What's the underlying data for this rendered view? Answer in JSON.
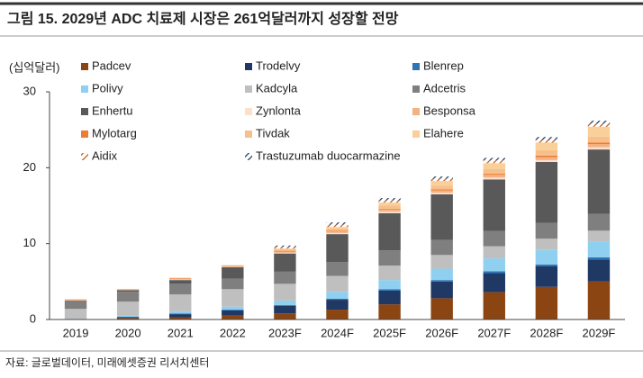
{
  "chart_data": {
    "type": "bar",
    "stacked": true,
    "title": "그림 15. 2029년 ADC 치료제 시장은 261억달러까지 성장할 전망",
    "y_label": "(십억달러)",
    "source": "자료: 글로벌데이터, 미래에셋증권 리서치센터",
    "categories": [
      "2019",
      "2020",
      "2021",
      "2022",
      "2023F",
      "2024F",
      "2025F",
      "2026F",
      "2027F",
      "2028F",
      "2029F"
    ],
    "ylim": [
      0,
      30
    ],
    "yticks": [
      0,
      10,
      20,
      30
    ],
    "series": [
      {
        "name": "Padcev",
        "color": "#8b4513",
        "values": [
          0,
          0.2,
          0.3,
          0.5,
          0.8,
          1.3,
          2.0,
          2.8,
          3.6,
          4.3,
          5.0
        ]
      },
      {
        "name": "Trodelvy",
        "color": "#1f3864",
        "values": [
          0,
          0.1,
          0.4,
          0.7,
          1.0,
          1.3,
          1.8,
          2.2,
          2.5,
          2.7,
          2.9
        ]
      },
      {
        "name": "Blenrep",
        "color": "#2e75b6",
        "values": [
          0,
          0.05,
          0.1,
          0.1,
          0.1,
          0.15,
          0.2,
          0.2,
          0.25,
          0.25,
          0.3
        ]
      },
      {
        "name": "Polivy",
        "color": "#8fd0f0",
        "values": [
          0.1,
          0.2,
          0.3,
          0.4,
          0.6,
          0.9,
          1.2,
          1.5,
          1.7,
          1.9,
          2.1
        ]
      },
      {
        "name": "Kadcyla",
        "color": "#bfbfbf",
        "values": [
          1.3,
          1.8,
          2.2,
          2.3,
          2.2,
          2.1,
          1.9,
          1.8,
          1.6,
          1.5,
          1.4
        ]
      },
      {
        "name": "Adcetris",
        "color": "#7f7f7f",
        "values": [
          1.1,
          1.3,
          1.4,
          1.4,
          1.6,
          1.8,
          2.0,
          2.0,
          2.0,
          2.1,
          2.2
        ]
      },
      {
        "name": "Enhertu",
        "color": "#595959",
        "values": [
          0,
          0.2,
          0.5,
          1.5,
          2.4,
          3.7,
          4.9,
          6.0,
          6.8,
          8.0,
          8.5
        ]
      },
      {
        "name": "Zynlonta",
        "color": "#fbe0cc",
        "values": [
          0,
          0,
          0.05,
          0.05,
          0.1,
          0.15,
          0.2,
          0.2,
          0.25,
          0.25,
          0.3
        ]
      },
      {
        "name": "Besponsa",
        "color": "#f4b183",
        "values": [
          0.1,
          0.1,
          0.15,
          0.1,
          0.15,
          0.2,
          0.3,
          0.3,
          0.35,
          0.4,
          0.4
        ]
      },
      {
        "name": "Mylotarg",
        "color": "#ed7d31",
        "values": [
          0.05,
          0.05,
          0.05,
          0.05,
          0.1,
          0.1,
          0.1,
          0.15,
          0.15,
          0.2,
          0.2
        ]
      },
      {
        "name": "Tivdak",
        "color": "#f6c08c",
        "values": [
          0,
          0,
          0.05,
          0.05,
          0.2,
          0.3,
          0.4,
          0.5,
          0.6,
          0.7,
          0.8
        ]
      },
      {
        "name": "Elahere",
        "color": "#f9cf9a",
        "values": [
          0,
          0,
          0,
          0,
          0.1,
          0.2,
          0.4,
          0.6,
          0.8,
          1.0,
          1.3
        ]
      },
      {
        "name": "Aidix",
        "color": "#c55a11",
        "hatch": true,
        "values": [
          0,
          0,
          0,
          0,
          0.2,
          0.3,
          0.3,
          0.3,
          0.35,
          0.35,
          0.4
        ]
      },
      {
        "name": "Trastuzumab duocarmazine",
        "color": "#1f3864",
        "hatch": true,
        "values": [
          0,
          0,
          0,
          0,
          0.2,
          0.3,
          0.3,
          0.3,
          0.35,
          0.4,
          0.4
        ]
      }
    ]
  }
}
